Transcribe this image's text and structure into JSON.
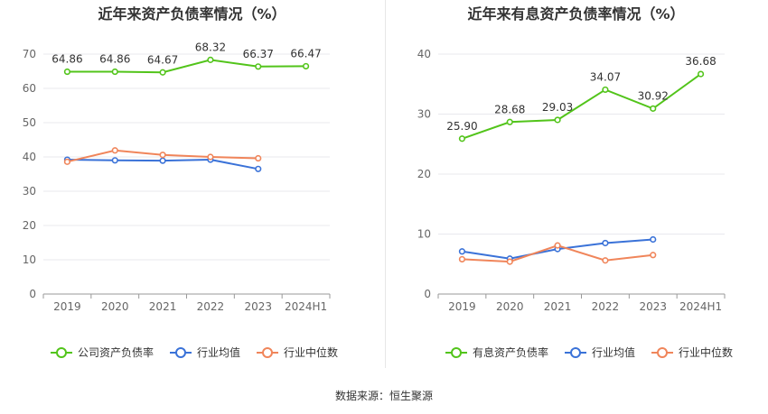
{
  "source_text": "数据来源：恒生聚源",
  "chart_data": [
    {
      "type": "line",
      "title": "近年来资产负债率情况（%）",
      "categories": [
        "2019",
        "2020",
        "2021",
        "2022",
        "2023",
        "2024H1"
      ],
      "ylim": [
        0,
        70
      ],
      "yticks": [
        "0",
        "10",
        "20",
        "30",
        "40",
        "50",
        "60",
        "70"
      ],
      "grid": true,
      "legend_position": "bottom",
      "series": [
        {
          "name": "公司资产负债率",
          "color": "#52c41a",
          "values": [
            64.86,
            64.86,
            64.67,
            68.32,
            66.37,
            66.47
          ],
          "labels": [
            "64.86",
            "64.86",
            "64.67",
            "68.32",
            "66.37",
            "66.47"
          ]
        },
        {
          "name": "行业均值",
          "color": "#3a72d8",
          "values": [
            39.2,
            39.0,
            38.9,
            39.2,
            36.5,
            null
          ]
        },
        {
          "name": "行业中位数",
          "color": "#f0855a",
          "values": [
            38.6,
            41.9,
            40.6,
            40.0,
            39.6,
            null
          ]
        }
      ]
    },
    {
      "type": "line",
      "title": "近年来有息资产负债率情况（%）",
      "categories": [
        "2019",
        "2020",
        "2021",
        "2022",
        "2023",
        "2024H1"
      ],
      "ylim": [
        0,
        40
      ],
      "yticks": [
        "0",
        "10",
        "20",
        "30",
        "40"
      ],
      "grid": true,
      "legend_position": "bottom",
      "series": [
        {
          "name": "有息资产负债率",
          "color": "#52c41a",
          "values": [
            25.9,
            28.68,
            29.03,
            34.07,
            30.92,
            36.68
          ],
          "labels": [
            "25.90",
            "28.68",
            "29.03",
            "34.07",
            "30.92",
            "36.68"
          ]
        },
        {
          "name": "行业均值",
          "color": "#3a72d8",
          "values": [
            7.1,
            5.9,
            7.5,
            8.5,
            9.1,
            null
          ]
        },
        {
          "name": "行业中位数",
          "color": "#f0855a",
          "values": [
            5.8,
            5.4,
            8.1,
            5.6,
            6.5,
            null
          ]
        }
      ]
    }
  ]
}
